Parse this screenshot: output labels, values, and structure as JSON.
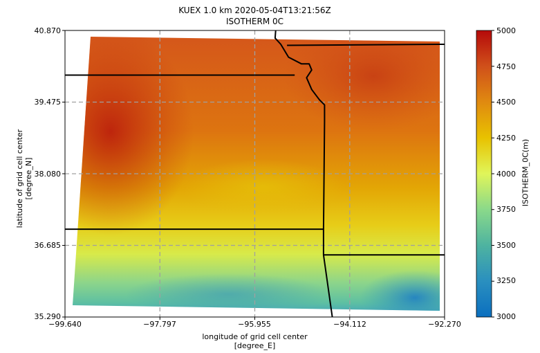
{
  "title_line1": "KUEX 1.0 km 2020-05-04T13:21:56Z",
  "title_line2": "ISOTHERM 0C",
  "xlabel_line1": "longitude of grid cell center",
  "xlabel_line2": "[degree_E]",
  "ylabel_line1": "latitude of grid cell center",
  "ylabel_line2": "[degree_N]",
  "colorbar_label": "ISOTHERM_0C(m)",
  "x_ticks": [
    "−99.640",
    "−97.797",
    "−95.955",
    "−94.112",
    "−92.270"
  ],
  "y_ticks": [
    "40.870",
    "39.475",
    "38.080",
    "36.685",
    "35.290"
  ],
  "colorbar_ticks": [
    "5000",
    "4750",
    "4500",
    "4250",
    "4000",
    "3750",
    "3500",
    "3250",
    "3000"
  ],
  "colormap": "jet",
  "colors": {
    "grid": "#a0a0a0",
    "border": "#000000"
  },
  "chart_data": {
    "type": "heatmap",
    "title": "KUEX 1.0 km 2020-05-04T13:21:56Z\nISOTHERM 0C",
    "xlabel": "longitude of grid cell center [degree_E]",
    "ylabel": "latitude of grid cell center [degree_N]",
    "xlim": [
      -99.64,
      -92.27
    ],
    "ylim": [
      35.29,
      40.87
    ],
    "colorbar": {
      "label": "ISOTHERM_0C(m)",
      "range": [
        3000,
        5000
      ]
    },
    "grid": true,
    "value_field_m": [
      {
        "lon": -99.2,
        "lat": 40.5,
        "value": 4800
      },
      {
        "lon": -99.0,
        "lat": 39.2,
        "value": 4850
      },
      {
        "lon": -98.5,
        "lat": 38.4,
        "value": 4650
      },
      {
        "lon": -96.5,
        "lat": 40.4,
        "value": 4650
      },
      {
        "lon": -94.5,
        "lat": 40.5,
        "value": 4700
      },
      {
        "lon": -93.2,
        "lat": 39.0,
        "value": 4350
      },
      {
        "lon": -95.5,
        "lat": 38.0,
        "value": 4050
      },
      {
        "lon": -96.7,
        "lat": 37.0,
        "value": 4200
      },
      {
        "lon": -93.2,
        "lat": 37.2,
        "value": 3800
      },
      {
        "lon": -98.8,
        "lat": 36.3,
        "value": 3900
      },
      {
        "lon": -95.3,
        "lat": 35.7,
        "value": 3300
      },
      {
        "lon": -93.0,
        "lat": 35.6,
        "value": 3250
      },
      {
        "lon": -99.3,
        "lat": 35.5,
        "value": 3400
      }
    ],
    "boundaries": [
      {
        "name": "boundary-1",
        "points": [
          [
            -99.64,
            40.0
          ],
          [
            -95.18,
            40.0
          ]
        ]
      },
      {
        "name": "boundary-2",
        "points": [
          [
            -95.55,
            40.87
          ],
          [
            -95.56,
            40.72
          ],
          [
            -95.45,
            40.6
          ],
          [
            -95.3,
            40.35
          ],
          [
            -95.05,
            40.22
          ],
          [
            -94.9,
            40.22
          ],
          [
            -94.85,
            40.1
          ],
          [
            -94.95,
            39.95
          ],
          [
            -94.85,
            39.72
          ],
          [
            -94.7,
            39.52
          ],
          [
            -94.6,
            39.42
          ],
          [
            -94.6,
            39.1
          ],
          [
            -94.62,
            37.0
          ],
          [
            -94.62,
            36.5
          ],
          [
            -94.45,
            35.29
          ]
        ]
      },
      {
        "name": "boundary-3",
        "points": [
          [
            -95.33,
            40.58
          ],
          [
            -92.27,
            40.6
          ]
        ]
      },
      {
        "name": "boundary-4",
        "points": [
          [
            -99.64,
            37.0
          ],
          [
            -94.62,
            37.0
          ]
        ]
      },
      {
        "name": "boundary-5",
        "points": [
          [
            -94.62,
            36.5
          ],
          [
            -92.27,
            36.5
          ]
        ]
      }
    ]
  }
}
